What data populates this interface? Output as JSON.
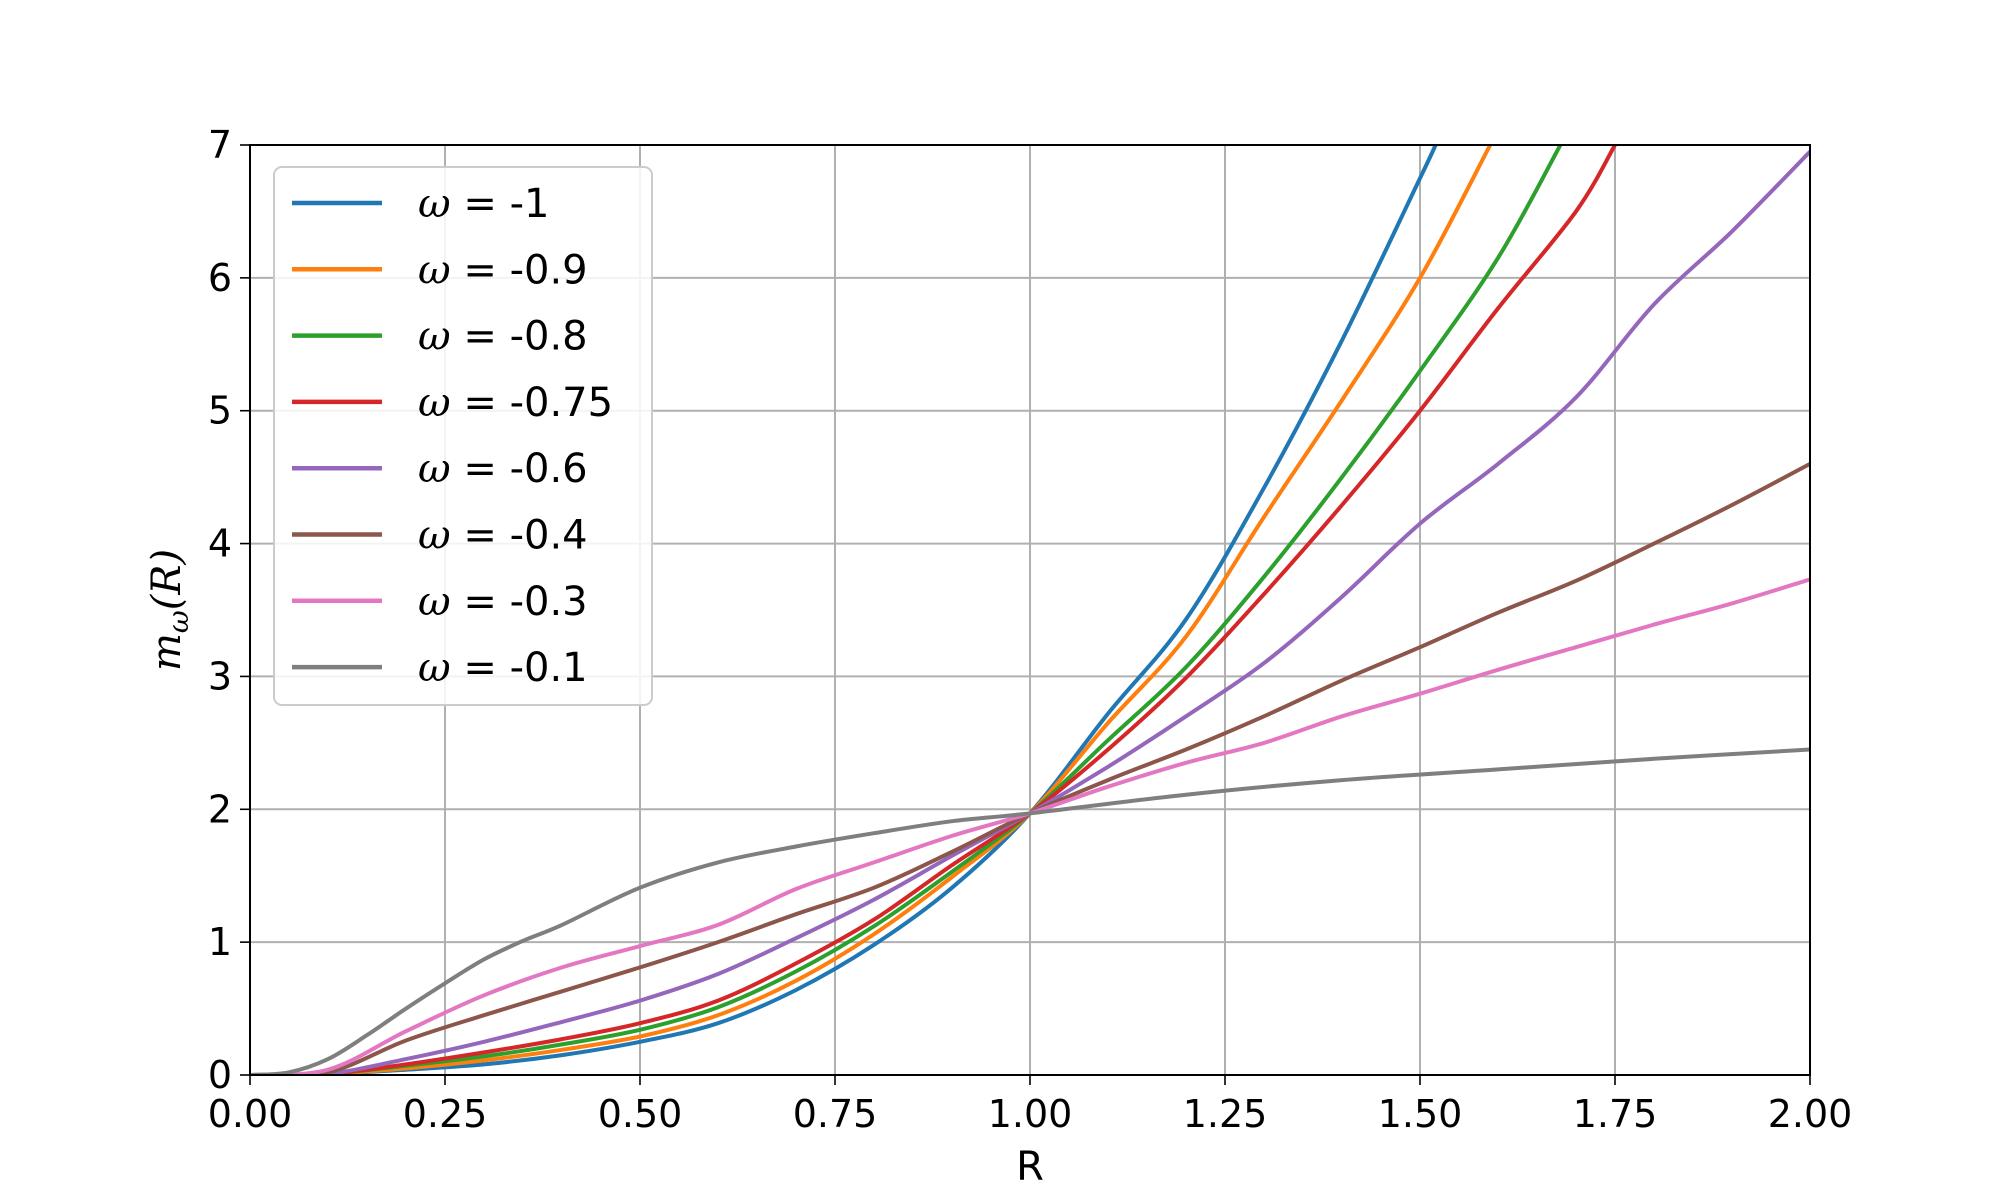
{
  "chart_data": {
    "type": "line",
    "title": "",
    "xlabel": "R",
    "ylabel_main": "m",
    "ylabel_sub": "ω",
    "ylabel_tail": "(R)",
    "xlim": [
      0.0,
      2.0
    ],
    "ylim": [
      0,
      7
    ],
    "xticks": [
      "0.00",
      "0.25",
      "0.50",
      "0.75",
      "1.00",
      "1.25",
      "1.50",
      "1.75",
      "2.00"
    ],
    "xtick_values": [
      0.0,
      0.25,
      0.5,
      0.75,
      1.0,
      1.25,
      1.5,
      1.75,
      2.0
    ],
    "yticks": [
      "0",
      "1",
      "2",
      "3",
      "4",
      "5",
      "6",
      "7"
    ],
    "ytick_values": [
      0,
      1,
      2,
      3,
      4,
      5,
      6,
      7
    ],
    "grid": true,
    "legend_position": "top-left",
    "legend_prefix": "ω",
    "series": [
      {
        "name": "-1",
        "color": "#1f77b4",
        "x": [
          0.0,
          0.1,
          0.2,
          0.3,
          0.4,
          0.5,
          0.6,
          0.7,
          0.8,
          0.9,
          1.0,
          1.1,
          1.2,
          1.3,
          1.4,
          1.5,
          1.52
        ],
        "y": [
          0.0,
          0.01,
          0.04,
          0.08,
          0.15,
          0.25,
          0.39,
          0.64,
          0.98,
          1.41,
          1.97,
          2.72,
          3.43,
          4.42,
          5.53,
          6.75,
          7.0
        ]
      },
      {
        "name": "-0.9",
        "color": "#ff7f0e",
        "x": [
          0.0,
          0.1,
          0.2,
          0.3,
          0.4,
          0.5,
          0.6,
          0.7,
          0.8,
          0.9,
          1.0,
          1.1,
          1.2,
          1.3,
          1.4,
          1.5,
          1.59
        ],
        "y": [
          0.0,
          0.01,
          0.05,
          0.11,
          0.19,
          0.29,
          0.45,
          0.71,
          1.06,
          1.49,
          1.97,
          2.65,
          3.3,
          4.2,
          5.08,
          6.0,
          7.0
        ]
      },
      {
        "name": "-0.8",
        "color": "#2ca02c",
        "x": [
          0.0,
          0.1,
          0.2,
          0.3,
          0.4,
          0.5,
          0.6,
          0.7,
          0.8,
          0.9,
          1.0,
          1.1,
          1.2,
          1.3,
          1.4,
          1.5,
          1.6,
          1.68
        ],
        "y": [
          0.0,
          0.01,
          0.07,
          0.14,
          0.23,
          0.34,
          0.51,
          0.78,
          1.12,
          1.53,
          1.97,
          2.52,
          3.07,
          3.75,
          4.5,
          5.3,
          6.15,
          7.0
        ]
      },
      {
        "name": "-0.75",
        "color": "#d62728",
        "x": [
          0.0,
          0.1,
          0.2,
          0.3,
          0.4,
          0.5,
          0.6,
          0.7,
          0.8,
          0.9,
          1.0,
          1.1,
          1.2,
          1.3,
          1.4,
          1.5,
          1.6,
          1.7,
          1.75
        ],
        "y": [
          0.0,
          0.01,
          0.08,
          0.17,
          0.27,
          0.39,
          0.56,
          0.84,
          1.17,
          1.58,
          1.97,
          2.45,
          2.99,
          3.62,
          4.29,
          5.0,
          5.77,
          6.5,
          7.0
        ]
      },
      {
        "name": "-0.6",
        "color": "#9467bd",
        "x": [
          0.0,
          0.1,
          0.2,
          0.3,
          0.4,
          0.5,
          0.6,
          0.7,
          0.8,
          0.9,
          1.0,
          1.1,
          1.2,
          1.3,
          1.4,
          1.5,
          1.6,
          1.7,
          1.8,
          1.9,
          2.0
        ],
        "y": [
          0.0,
          0.01,
          0.12,
          0.25,
          0.4,
          0.56,
          0.76,
          1.03,
          1.32,
          1.65,
          1.97,
          2.32,
          2.7,
          3.1,
          3.6,
          4.15,
          4.6,
          5.1,
          5.8,
          6.35,
          6.95
        ]
      },
      {
        "name": "-0.4",
        "color": "#8c564b",
        "x": [
          0.0,
          0.1,
          0.2,
          0.3,
          0.4,
          0.5,
          0.6,
          0.7,
          0.8,
          0.9,
          1.0,
          1.1,
          1.2,
          1.3,
          1.4,
          1.5,
          1.6,
          1.7,
          1.8,
          1.9,
          2.0
        ],
        "y": [
          0.0,
          0.02,
          0.26,
          0.45,
          0.63,
          0.81,
          1.0,
          1.21,
          1.41,
          1.68,
          1.97,
          2.22,
          2.45,
          2.7,
          2.97,
          3.22,
          3.48,
          3.72,
          4.0,
          4.29,
          4.6
        ]
      },
      {
        "name": "-0.3",
        "color": "#e377c2",
        "x": [
          0.0,
          0.1,
          0.2,
          0.3,
          0.4,
          0.5,
          0.6,
          0.7,
          0.8,
          0.9,
          1.0,
          1.1,
          1.2,
          1.3,
          1.4,
          1.5,
          1.6,
          1.7,
          1.8,
          1.9,
          2.0
        ],
        "y": [
          0.0,
          0.04,
          0.33,
          0.6,
          0.81,
          0.97,
          1.13,
          1.4,
          1.6,
          1.8,
          1.97,
          2.17,
          2.35,
          2.5,
          2.7,
          2.87,
          3.05,
          3.22,
          3.39,
          3.55,
          3.73
        ]
      },
      {
        "name": "-0.1",
        "color": "#7f7f7f",
        "x": [
          0.0,
          0.05,
          0.1,
          0.15,
          0.2,
          0.25,
          0.3,
          0.35,
          0.4,
          0.5,
          0.6,
          0.7,
          0.8,
          0.9,
          1.0,
          1.2,
          1.4,
          1.6,
          1.8,
          2.0
        ],
        "y": [
          0.0,
          0.02,
          0.12,
          0.3,
          0.5,
          0.69,
          0.87,
          1.01,
          1.13,
          1.41,
          1.6,
          1.72,
          1.82,
          1.91,
          1.97,
          2.11,
          2.22,
          2.3,
          2.38,
          2.45
        ]
      }
    ]
  }
}
